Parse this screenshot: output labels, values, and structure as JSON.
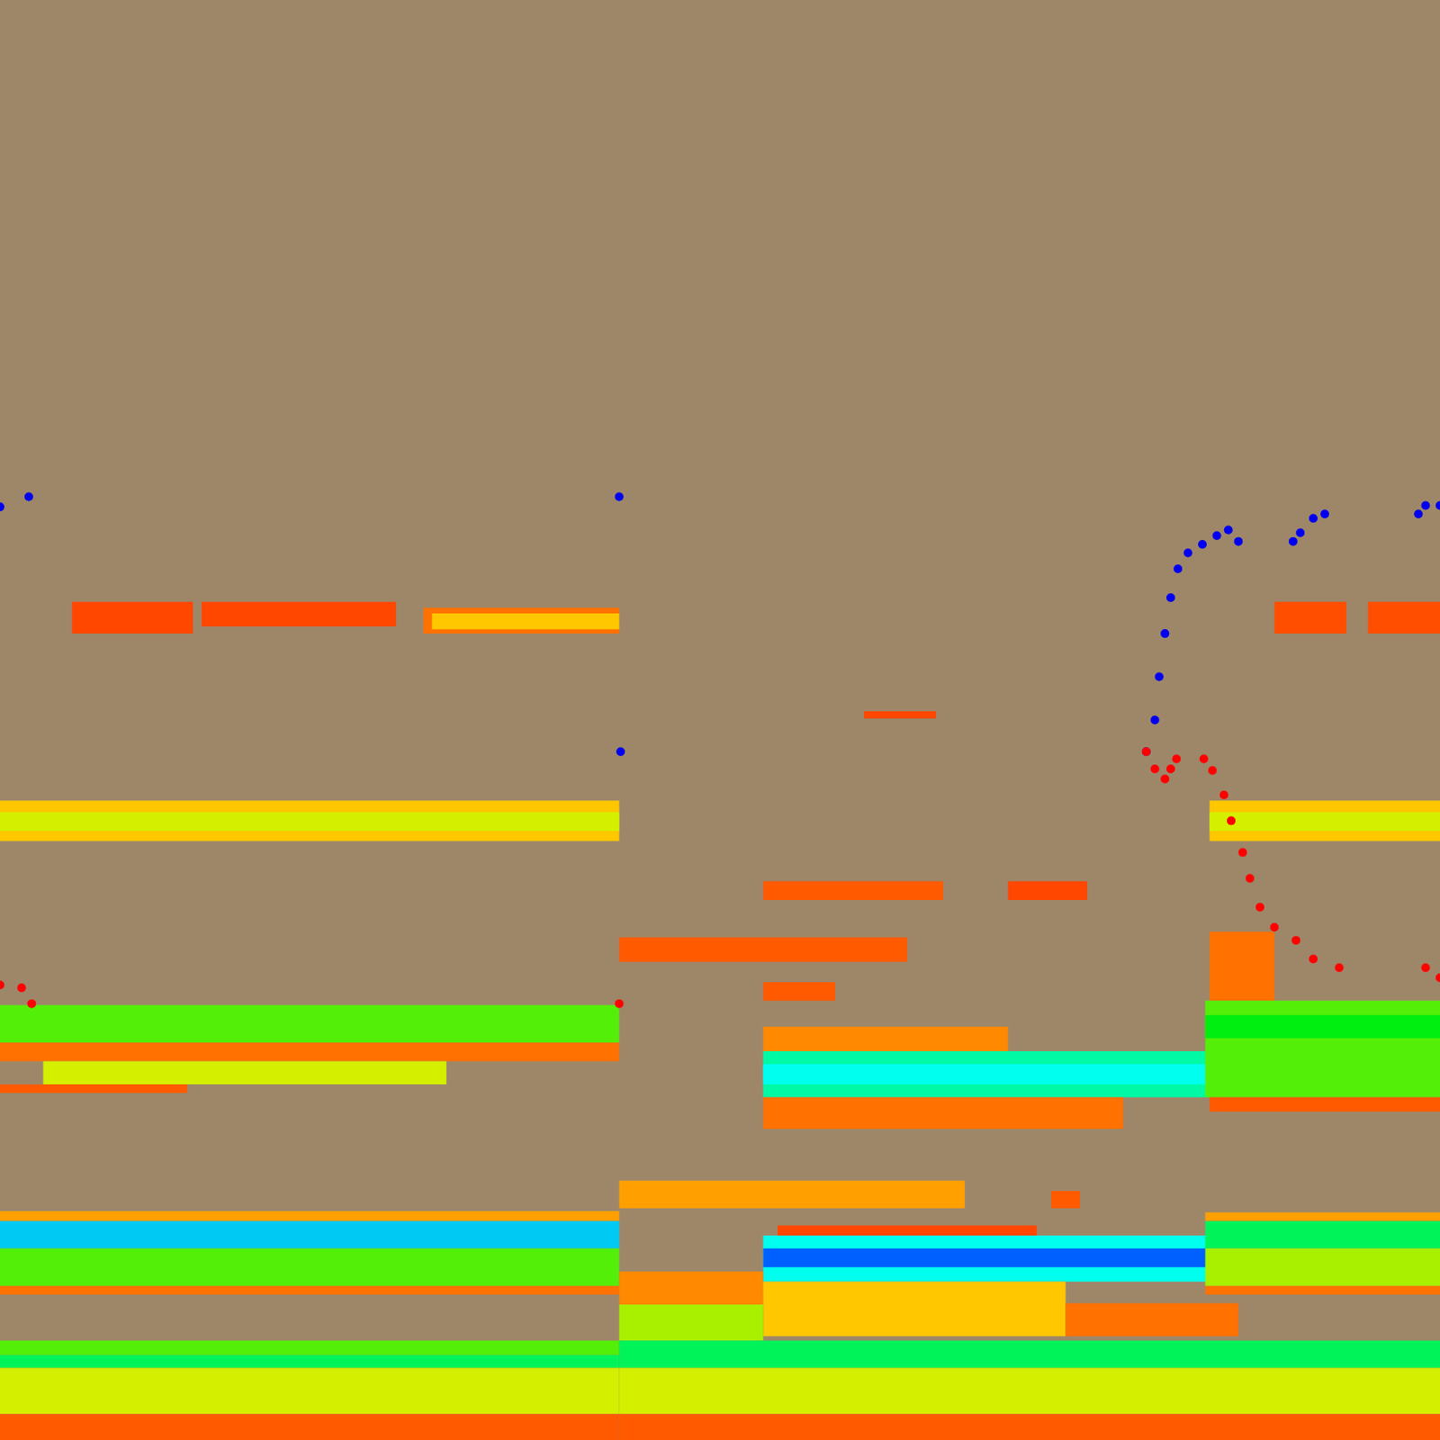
{
  "chart_data": {
    "type": "spectrogram",
    "tick_labels": false,
    "grid": false,
    "xlim": [
      0,
      100
    ],
    "ylim": [
      0,
      100
    ],
    "color_range": [
      0,
      1
    ],
    "cells": [
      [
        5,
        13.4,
        56.0,
        58.2,
        0.1
      ],
      [
        14,
        27.5,
        56.5,
        58.2,
        0.1
      ],
      [
        29.4,
        43,
        56.0,
        57.8,
        0.2
      ],
      [
        30,
        43,
        56.3,
        57.4,
        0.35
      ],
      [
        0,
        43,
        41.6,
        44.4,
        0.35
      ],
      [
        0,
        43,
        42.3,
        43.6,
        0.45
      ],
      [
        0,
        43,
        27.6,
        30.2,
        0.55
      ],
      [
        0,
        43,
        26.3,
        27.6,
        0.2
      ],
      [
        3,
        31,
        24.7,
        26.3,
        0.45
      ],
      [
        0,
        13,
        24.1,
        24.7,
        0.15
      ],
      [
        0,
        43,
        15.2,
        15.9,
        0.3
      ],
      [
        0,
        43,
        13.3,
        15.2,
        0.8
      ],
      [
        0,
        43,
        10.7,
        13.3,
        0.55
      ],
      [
        0,
        43,
        10.1,
        10.7,
        0.2
      ],
      [
        0,
        43,
        5.9,
        6.9,
        0.55
      ],
      [
        0,
        43,
        5.0,
        5.9,
        0.65
      ],
      [
        0,
        43,
        1.8,
        5.0,
        0.45
      ],
      [
        0,
        43,
        0,
        1.8,
        0.15
      ],
      [
        60,
        65,
        50.1,
        50.6,
        0.1
      ],
      [
        53,
        65.5,
        37.5,
        38.8,
        0.15
      ],
      [
        70,
        75.5,
        37.5,
        38.8,
        0.1
      ],
      [
        43,
        63,
        33.2,
        34.9,
        0.15
      ],
      [
        53,
        58,
        30.5,
        31.8,
        0.15
      ],
      [
        53,
        70,
        27.0,
        28.7,
        0.25
      ],
      [
        53,
        84,
        23.8,
        27.0,
        0.7
      ],
      [
        53,
        84,
        24.7,
        26.1,
        0.75
      ],
      [
        53,
        78,
        21.6,
        23.8,
        0.2
      ],
      [
        43,
        67,
        16.1,
        18.0,
        0.3
      ],
      [
        73,
        75,
        16.1,
        17.3,
        0.15
      ],
      [
        54,
        72,
        14.2,
        14.9,
        0.1
      ],
      [
        53,
        84,
        11.0,
        14.2,
        0.75
      ],
      [
        53,
        84,
        12.0,
        13.3,
        0.9
      ],
      [
        43,
        53,
        9.4,
        11.7,
        0.25
      ],
      [
        53,
        74,
        7.2,
        11.0,
        0.35
      ],
      [
        74,
        86,
        7.2,
        9.5,
        0.2
      ],
      [
        43,
        53,
        6.9,
        9.4,
        0.5
      ],
      [
        43,
        100,
        5.0,
        6.9,
        0.65
      ],
      [
        43,
        100,
        1.8,
        5.0,
        0.45
      ],
      [
        43,
        100,
        0,
        1.8,
        0.15
      ],
      [
        88.5,
        93.5,
        56.0,
        58.2,
        0.12
      ],
      [
        95,
        100,
        56.0,
        58.2,
        0.12
      ],
      [
        84,
        100,
        41.6,
        44.4,
        0.35
      ],
      [
        84,
        100,
        42.3,
        43.6,
        0.45
      ],
      [
        84,
        88.5,
        30.5,
        35.3,
        0.2
      ],
      [
        83.7,
        100,
        23.8,
        30.5,
        0.55
      ],
      [
        83.7,
        100,
        27.9,
        29.5,
        0.6
      ],
      [
        84,
        100,
        22.8,
        23.8,
        0.15
      ],
      [
        83.7,
        100,
        15.2,
        15.8,
        0.3
      ],
      [
        83.7,
        100,
        13.3,
        15.2,
        0.65
      ],
      [
        83.7,
        100,
        10.7,
        13.3,
        0.5
      ],
      [
        83.7,
        100,
        10.1,
        10.7,
        0.2
      ]
    ],
    "series": [
      {
        "color": "#0000ee",
        "marker": "circle",
        "line_style": "none",
        "x": [
          0,
          2,
          43,
          43.05,
          43.1,
          79.6,
          80.2,
          80.5,
          80.9,
          81.3,
          81.8,
          82.5,
          83.5,
          84.5,
          85.3,
          86.0,
          89.8,
          90.3,
          91.2,
          92.0,
          98.5,
          99.0,
          100
        ],
        "values": [
          64.8,
          65.5,
          65.5,
          null,
          47.8,
          47.8,
          50,
          53,
          56,
          58.5,
          60.5,
          61.6,
          62.2,
          62.8,
          63.2,
          62.4,
          62.4,
          63.0,
          64.0,
          64.3,
          64.3,
          64.9,
          64.9
        ]
      },
      {
        "color": "#ff0000",
        "marker": "circle",
        "line_style": "none",
        "x": [
          0,
          1.5,
          2.2,
          43,
          43.05,
          79.6,
          80.2,
          80.9,
          81.3,
          81.7,
          83.6,
          84.2,
          85.0,
          85.5,
          86.3,
          86.8,
          87.5,
          88.5,
          90.0,
          91.2,
          93.0,
          99.0,
          100
        ],
        "values": [
          31.6,
          31.4,
          30.3,
          30.3,
          null,
          47.8,
          46.6,
          45.9,
          46.6,
          47.3,
          47.3,
          46.5,
          44.8,
          43.0,
          40.8,
          39.0,
          37.0,
          35.6,
          34.7,
          33.4,
          32.8,
          32.8,
          32.1
        ]
      }
    ]
  }
}
